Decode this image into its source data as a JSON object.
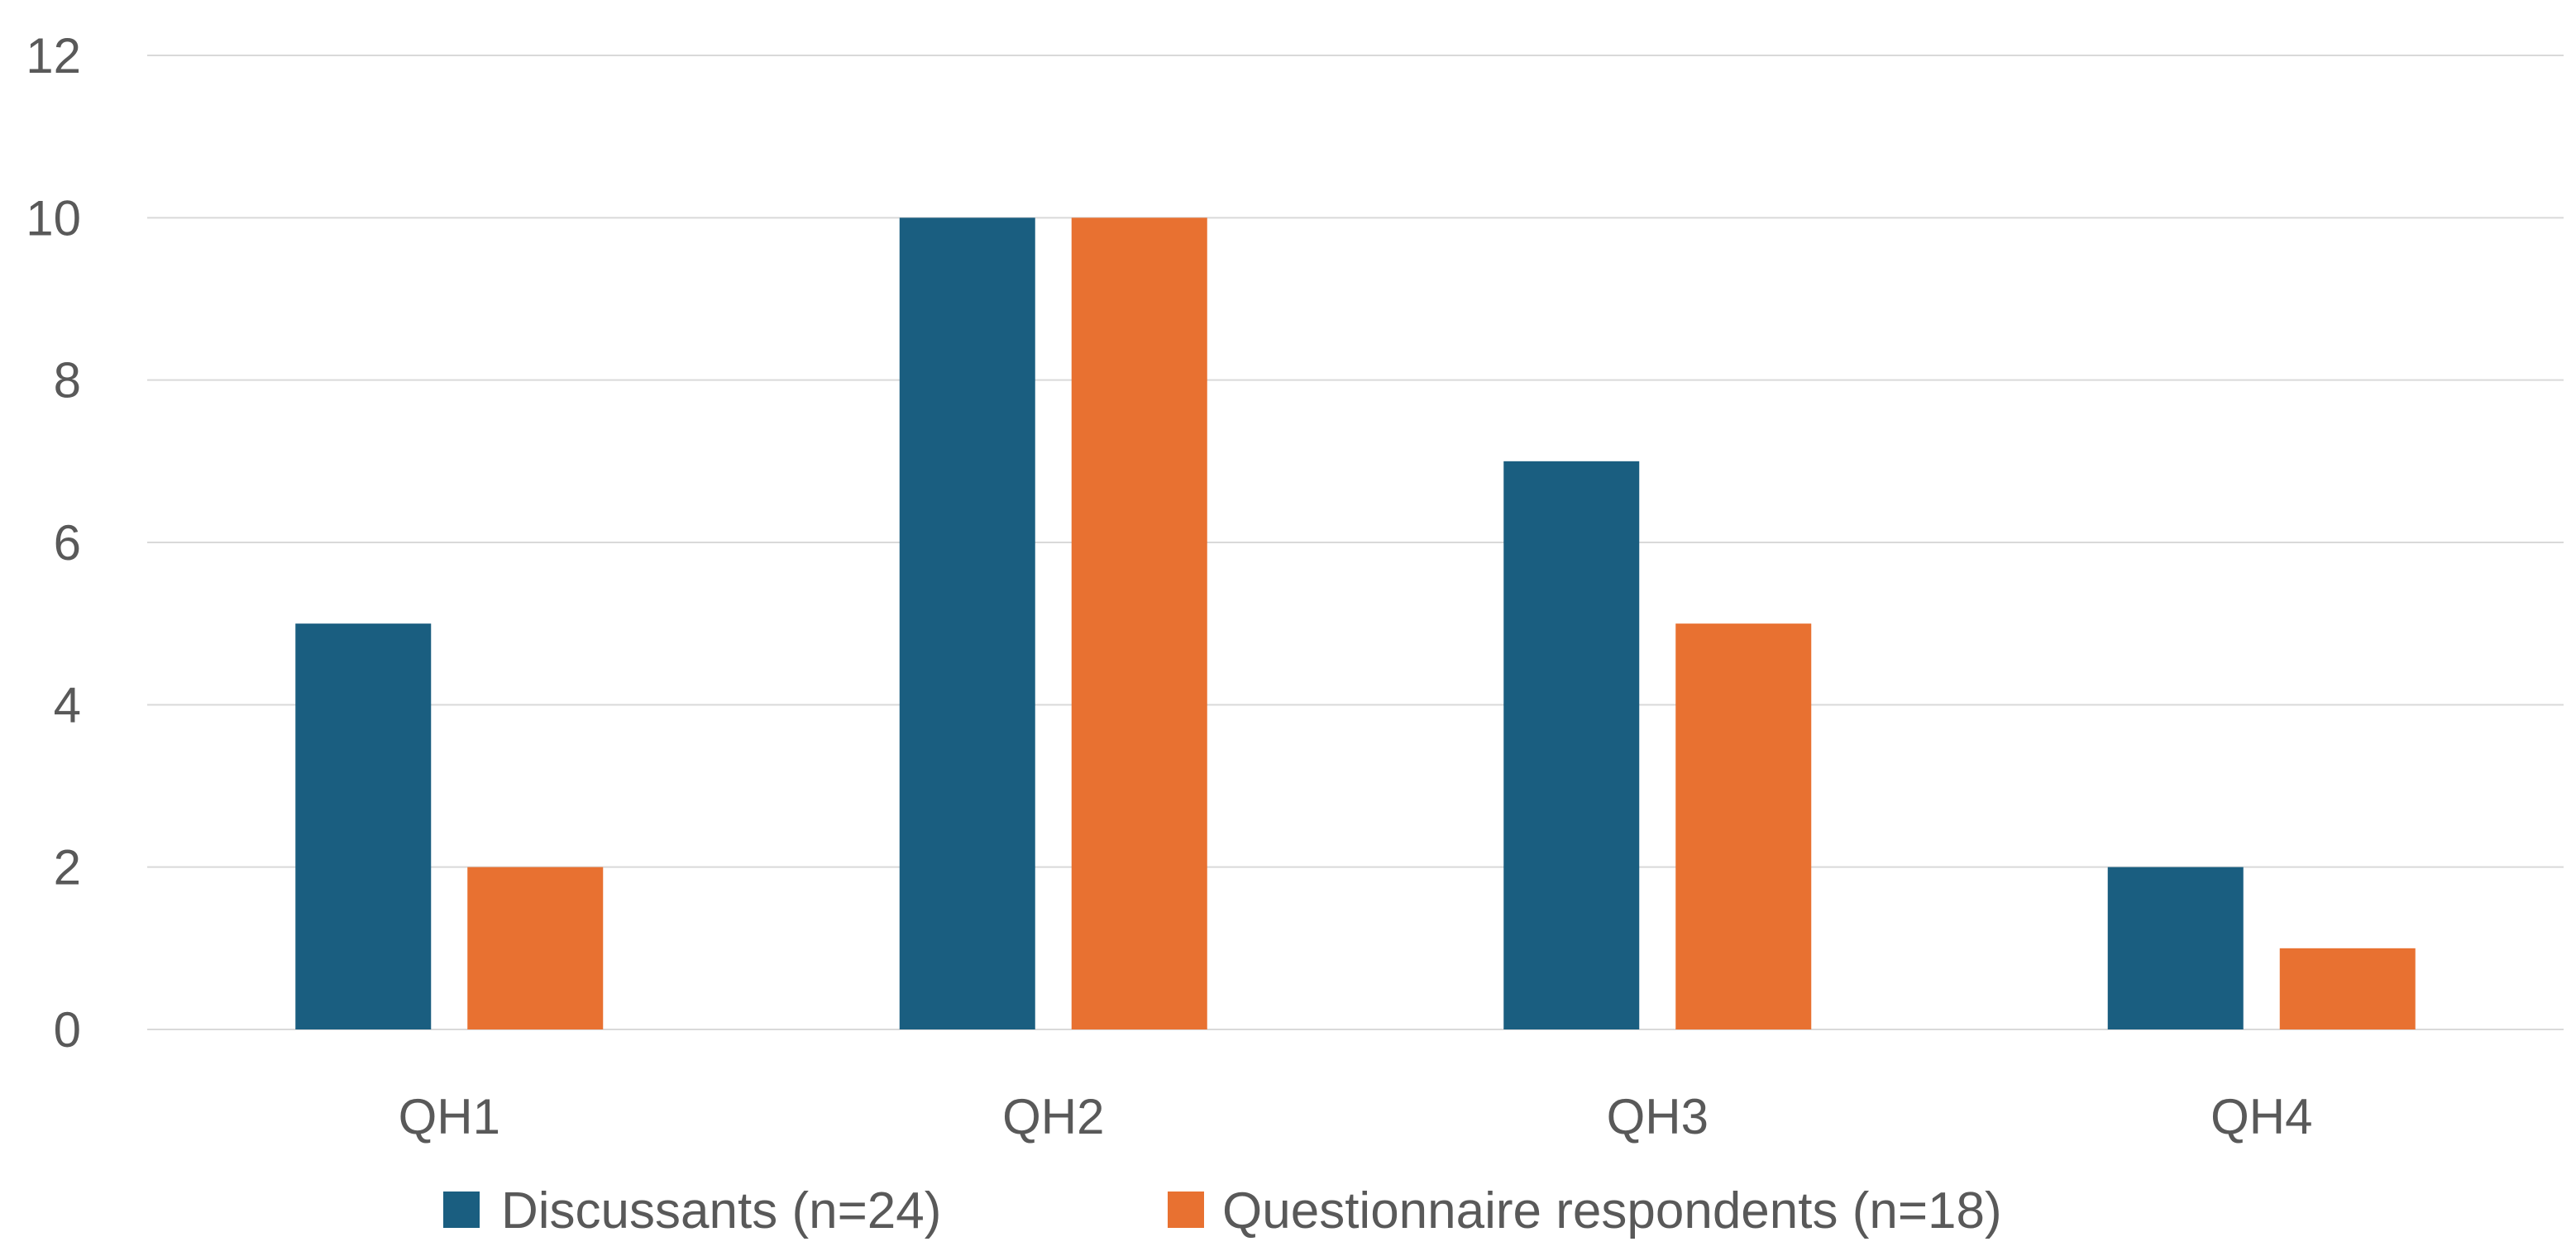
{
  "chart_data": {
    "type": "bar",
    "categories": [
      "QH1",
      "QH2",
      "QH3",
      "QH4"
    ],
    "series": [
      {
        "name": "Discussants (n=24)",
        "values": [
          5,
          10,
          7,
          2
        ],
        "color": "#1a5e80"
      },
      {
        "name": "Questionnaire respondents (n=18)",
        "values": [
          2,
          10,
          5,
          1
        ],
        "color": "#e87131"
      }
    ],
    "ylim": [
      0,
      12
    ],
    "yticks": [
      0,
      2,
      4,
      6,
      8,
      10,
      12
    ],
    "grid": true,
    "legend_position": "bottom",
    "gridline_color": "#d9d9d9",
    "text_color": "#595959"
  }
}
